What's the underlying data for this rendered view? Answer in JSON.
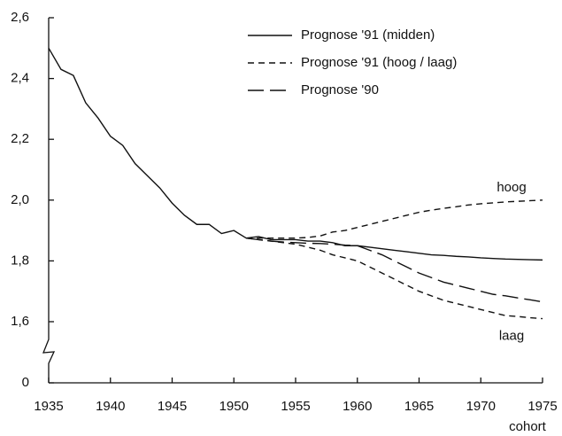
{
  "chart_data": {
    "type": "line",
    "x": [
      1935,
      1936,
      1937,
      1938,
      1939,
      1940,
      1941,
      1942,
      1943,
      1944,
      1945,
      1946,
      1947,
      1948,
      1949,
      1950,
      1951,
      1952,
      1953,
      1954,
      1955,
      1956,
      1957,
      1958,
      1959,
      1960,
      1961,
      1962,
      1963,
      1964,
      1965,
      1966,
      1967,
      1968,
      1969,
      1970,
      1971,
      1972,
      1973,
      1974,
      1975
    ],
    "xlim": [
      1935,
      1975
    ],
    "xticks": [
      1935,
      1940,
      1945,
      1950,
      1955,
      1960,
      1965,
      1970,
      1975
    ],
    "xlabel": "cohort",
    "ylim": [
      0,
      2.6
    ],
    "axis_break": [
      0,
      1.6
    ],
    "yticks": [
      0,
      {
        "value": 1.6,
        "label": "1,6"
      },
      {
        "value": 1.8,
        "label": "1,8"
      },
      {
        "value": 2.0,
        "label": "2,0"
      },
      {
        "value": 2.2,
        "label": "2,2"
      },
      {
        "value": 2.4,
        "label": "2,4"
      },
      {
        "value": 2.6,
        "label": "2,6"
      }
    ],
    "series": [
      {
        "name": "Prognose '91 (midden)",
        "color": "#111111",
        "dash": "solid",
        "values": [
          2.5,
          2.43,
          2.41,
          2.32,
          2.27,
          2.21,
          2.18,
          2.12,
          2.08,
          2.04,
          1.99,
          1.95,
          1.92,
          1.92,
          1.89,
          1.9,
          1.875,
          1.88,
          1.87,
          1.87,
          1.87,
          1.865,
          1.865,
          1.86,
          1.85,
          1.85,
          1.845,
          1.84,
          1.835,
          1.83,
          1.825,
          1.82,
          1.818,
          1.815,
          1.813,
          1.81,
          1.808,
          1.806,
          1.805,
          1.804,
          1.803
        ]
      },
      {
        "name": "Prognose '91 (hoog / laag)",
        "label": "hoog",
        "color": "#111111",
        "dash": "short",
        "values": [
          null,
          null,
          null,
          null,
          null,
          null,
          null,
          null,
          null,
          null,
          null,
          null,
          null,
          null,
          null,
          null,
          1.875,
          1.875,
          1.875,
          1.875,
          1.875,
          1.877,
          1.882,
          1.895,
          1.9,
          1.91,
          1.92,
          1.93,
          1.94,
          1.95,
          1.96,
          1.967,
          1.973,
          1.978,
          1.984,
          1.988,
          1.991,
          1.994,
          1.996,
          1.998,
          2.0
        ]
      },
      {
        "label": "laag",
        "color": "#111111",
        "dash": "short",
        "values": [
          null,
          null,
          null,
          null,
          null,
          null,
          null,
          null,
          null,
          null,
          null,
          null,
          null,
          null,
          null,
          null,
          1.875,
          1.87,
          1.865,
          1.86,
          1.855,
          1.845,
          1.835,
          1.82,
          1.81,
          1.8,
          1.78,
          1.76,
          1.74,
          1.72,
          1.7,
          1.685,
          1.67,
          1.66,
          1.65,
          1.64,
          1.63,
          1.62,
          1.617,
          1.613,
          1.61
        ]
      },
      {
        "name": "Prognose '90",
        "color": "#111111",
        "dash": "long",
        "values": [
          null,
          null,
          null,
          null,
          null,
          null,
          null,
          null,
          null,
          null,
          null,
          null,
          null,
          null,
          null,
          null,
          1.875,
          1.87,
          1.865,
          1.862,
          1.86,
          1.858,
          1.857,
          1.855,
          1.852,
          1.85,
          1.835,
          1.82,
          1.8,
          1.78,
          1.76,
          1.745,
          1.73,
          1.72,
          1.71,
          1.7,
          1.69,
          1.685,
          1.678,
          1.672,
          1.665
        ]
      }
    ]
  }
}
